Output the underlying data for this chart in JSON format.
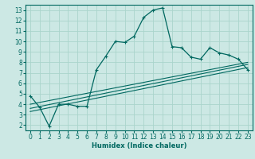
{
  "xlabel": "Humidex (Indice chaleur)",
  "bg_color": "#cce8e4",
  "grid_color": "#aad4cc",
  "line_color": "#006860",
  "xlim": [
    -0.5,
    23.5
  ],
  "ylim": [
    1.5,
    13.5
  ],
  "xticks": [
    0,
    1,
    2,
    3,
    4,
    5,
    6,
    7,
    8,
    9,
    10,
    11,
    12,
    13,
    14,
    15,
    16,
    17,
    18,
    19,
    20,
    21,
    22,
    23
  ],
  "yticks": [
    2,
    3,
    4,
    5,
    6,
    7,
    8,
    9,
    10,
    11,
    12,
    13
  ],
  "series1_x": [
    0,
    1,
    2,
    3,
    4,
    5,
    6,
    7,
    8,
    9,
    10,
    11,
    12,
    13,
    14,
    15,
    16,
    17,
    18,
    19,
    20,
    21,
    22,
    23
  ],
  "series1_y": [
    4.8,
    3.7,
    1.9,
    4.0,
    4.0,
    3.8,
    3.8,
    7.3,
    8.6,
    10.0,
    9.9,
    10.5,
    12.3,
    13.0,
    13.2,
    9.5,
    9.4,
    8.5,
    8.3,
    9.4,
    8.9,
    8.7,
    8.3,
    7.3
  ],
  "series2_x": [
    0,
    23
  ],
  "series2_y": [
    3.3,
    7.5
  ],
  "series3_x": [
    0,
    23
  ],
  "series3_y": [
    3.6,
    7.8
  ],
  "series4_x": [
    0,
    23
  ],
  "series4_y": [
    4.0,
    8.0
  ]
}
